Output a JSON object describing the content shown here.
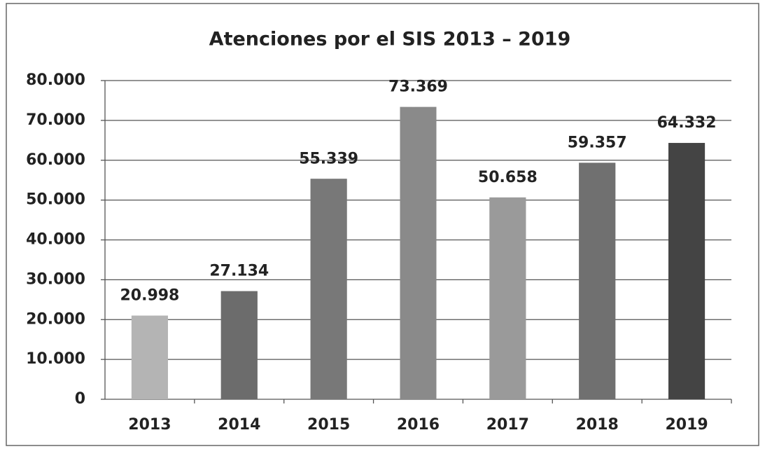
{
  "chart_data": {
    "type": "bar",
    "title": "Atenciones por el SIS 2013 – 2019",
    "categories": [
      "2013",
      "2014",
      "2015",
      "2016",
      "2017",
      "2018",
      "2019"
    ],
    "values": [
      20998,
      27134,
      55339,
      73369,
      50658,
      59357,
      64332
    ],
    "value_labels": [
      "20.998",
      "27.134",
      "55.339",
      "73.369",
      "50.658",
      "59.357",
      "64.332"
    ],
    "colors": [
      "#b4b4b4",
      "#6c6c6c",
      "#787878",
      "#8a8a8a",
      "#9a9a9a",
      "#707070",
      "#444444"
    ],
    "ylim": [
      0,
      80000
    ],
    "yticks": [
      0,
      {
        "value": 10000,
        "label": "10.000"
      },
      {
        "value": 20000,
        "label": "20.000"
      },
      {
        "value": 30000,
        "label": "30.000"
      },
      {
        "value": 40000,
        "label": "40.000"
      },
      {
        "value": 50000,
        "label": "50.000"
      },
      {
        "value": 60000,
        "label": "60.000"
      },
      {
        "value": 70000,
        "label": "70.000"
      },
      {
        "value": 80000,
        "label": "80.000"
      }
    ],
    "grid": true
  }
}
